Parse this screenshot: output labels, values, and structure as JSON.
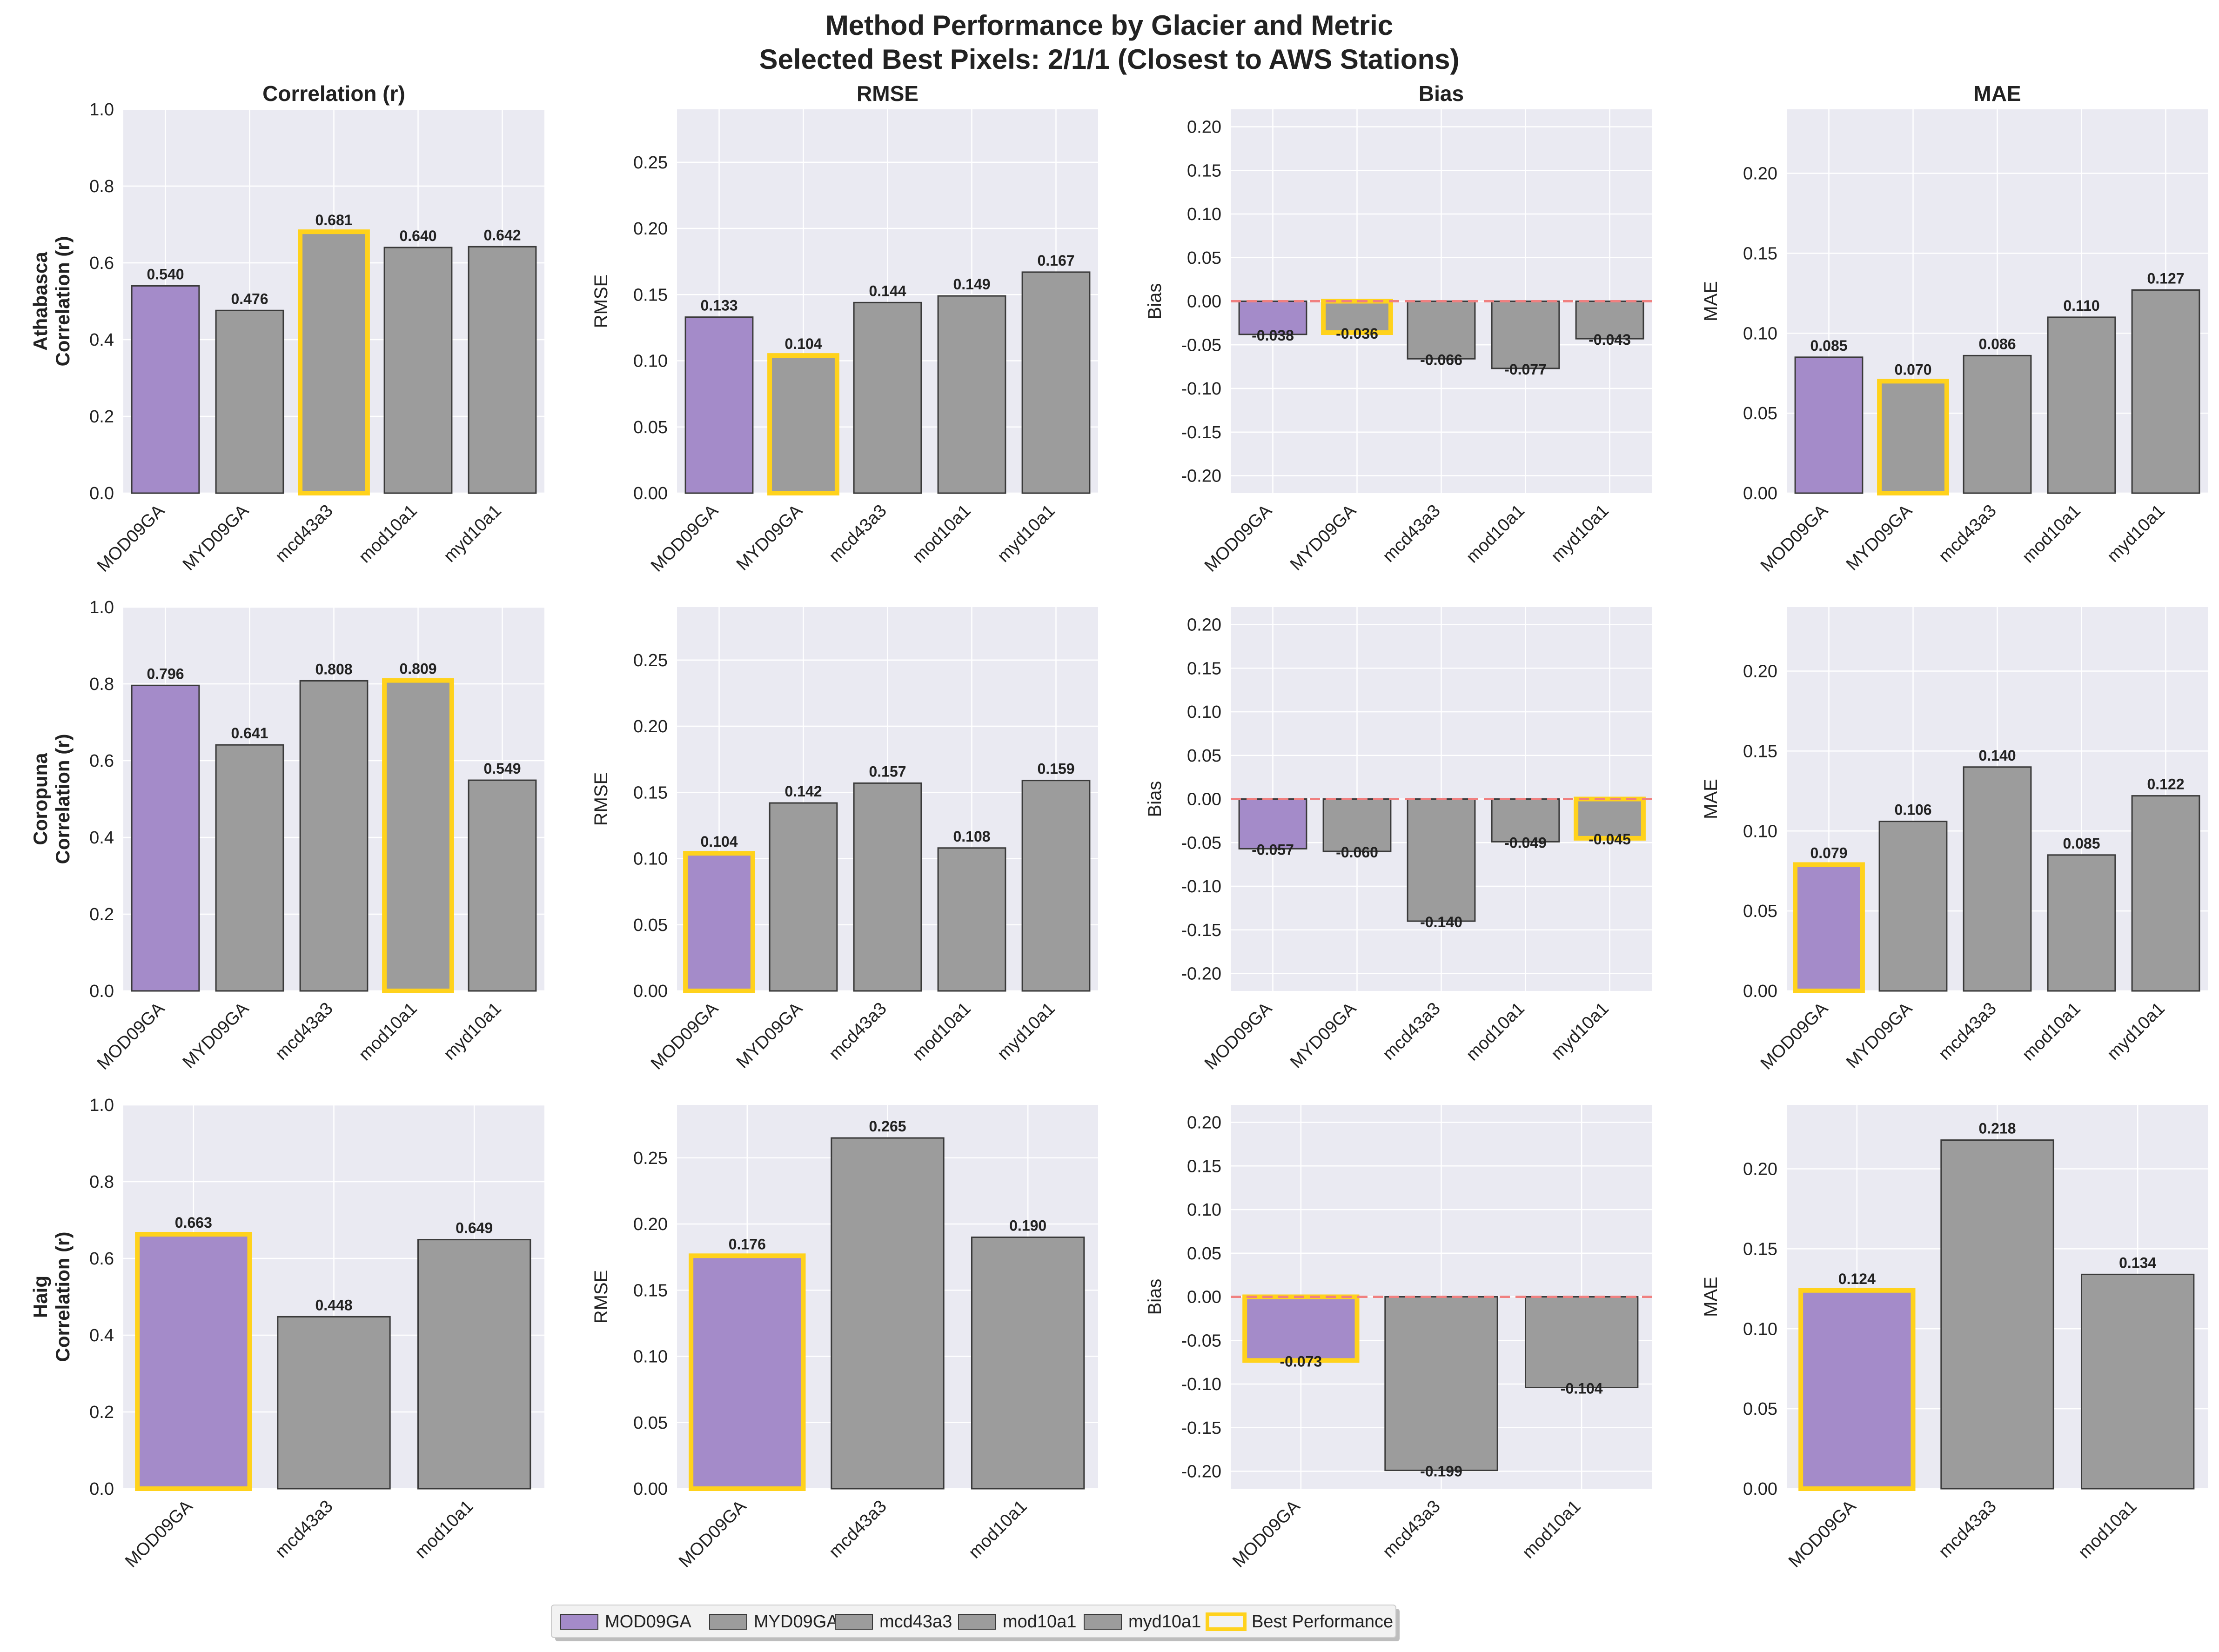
{
  "figure": {
    "title_line1": "Method Performance by Glacier and Metric",
    "title_line2": "Selected Best Pixels: 2/1/1 (Closest to AWS Stations)",
    "colors": {
      "background": "#eaeaf2",
      "grid": "#ffffff",
      "purple": "#a48bc9",
      "gray": "#9c9c9c",
      "edge": "#3a3a3a",
      "best": "#ffd21c",
      "zero_line": "#f08080"
    }
  },
  "legend": {
    "items": [
      {
        "label": "MOD09GA",
        "color": "#a48bc9",
        "kind": "fill"
      },
      {
        "label": "MYD09GA",
        "color": "#9c9c9c",
        "kind": "fill"
      },
      {
        "label": "mcd43a3",
        "color": "#9c9c9c",
        "kind": "fill"
      },
      {
        "label": "mod10a1",
        "color": "#9c9c9c",
        "kind": "fill"
      },
      {
        "label": "myd10a1",
        "color": "#9c9c9c",
        "kind": "fill"
      },
      {
        "label": "Best Performance",
        "color": "#ffd21c",
        "kind": "outline"
      }
    ]
  },
  "chart_data": [
    {
      "type": "bar",
      "row": 0,
      "col": 0,
      "title": "Correlation (r)",
      "ylabel": "Athabasca\nCorrelation (r)",
      "categories": [
        "MOD09GA",
        "MYD09GA",
        "mcd43a3",
        "mod10a1",
        "myd10a1"
      ],
      "values": [
        0.54,
        0.476,
        0.681,
        0.64,
        0.642
      ],
      "labels": [
        "0.540",
        "0.476",
        "0.681",
        "0.640",
        "0.642"
      ],
      "best": 2,
      "ylim": [
        0,
        1.0
      ],
      "ticks": [
        0.0,
        0.2,
        0.4,
        0.6,
        0.8,
        1.0
      ],
      "tick_labels": [
        "0.0",
        "0.2",
        "0.4",
        "0.6",
        "0.8",
        "1.0"
      ],
      "zero_line": false
    },
    {
      "type": "bar",
      "row": 0,
      "col": 1,
      "title": "RMSE",
      "ylabel": "RMSE",
      "categories": [
        "MOD09GA",
        "MYD09GA",
        "mcd43a3",
        "mod10a1",
        "myd10a1"
      ],
      "values": [
        0.133,
        0.104,
        0.144,
        0.149,
        0.167
      ],
      "labels": [
        "0.133",
        "0.104",
        "0.144",
        "0.149",
        "0.167"
      ],
      "best": 1,
      "ylim": [
        0,
        0.29
      ],
      "ticks": [
        0.0,
        0.05,
        0.1,
        0.15,
        0.2,
        0.25
      ],
      "tick_labels": [
        "0.00",
        "0.05",
        "0.10",
        "0.15",
        "0.20",
        "0.25"
      ],
      "zero_line": false
    },
    {
      "type": "bar",
      "row": 0,
      "col": 2,
      "title": "Bias",
      "ylabel": "Bias",
      "categories": [
        "MOD09GA",
        "MYD09GA",
        "mcd43a3",
        "mod10a1",
        "myd10a1"
      ],
      "values": [
        -0.038,
        -0.036,
        -0.066,
        -0.077,
        -0.043
      ],
      "labels": [
        "-0.038",
        "-0.036",
        "-0.066",
        "-0.077",
        "-0.043"
      ],
      "best": 1,
      "ylim": [
        -0.22,
        0.22
      ],
      "ticks": [
        -0.2,
        -0.15,
        -0.1,
        -0.05,
        0.0,
        0.05,
        0.1,
        0.15,
        0.2
      ],
      "tick_labels": [
        "-0.20",
        "-0.15",
        "-0.10",
        "-0.05",
        "0.00",
        "0.05",
        "0.10",
        "0.15",
        "0.20"
      ],
      "zero_line": true
    },
    {
      "type": "bar",
      "row": 0,
      "col": 3,
      "title": "MAE",
      "ylabel": "MAE",
      "categories": [
        "MOD09GA",
        "MYD09GA",
        "mcd43a3",
        "mod10a1",
        "myd10a1"
      ],
      "values": [
        0.085,
        0.07,
        0.086,
        0.11,
        0.127
      ],
      "labels": [
        "0.085",
        "0.070",
        "0.086",
        "0.110",
        "0.127"
      ],
      "best": 1,
      "ylim": [
        0,
        0.24
      ],
      "ticks": [
        0.0,
        0.05,
        0.1,
        0.15,
        0.2
      ],
      "tick_labels": [
        "0.00",
        "0.05",
        "0.10",
        "0.15",
        "0.20"
      ],
      "zero_line": false
    },
    {
      "type": "bar",
      "row": 1,
      "col": 0,
      "title": "",
      "ylabel": "Coropuna\nCorrelation (r)",
      "categories": [
        "MOD09GA",
        "MYD09GA",
        "mcd43a3",
        "mod10a1",
        "myd10a1"
      ],
      "values": [
        0.796,
        0.641,
        0.808,
        0.809,
        0.549
      ],
      "labels": [
        "0.796",
        "0.641",
        "0.808",
        "0.809",
        "0.549"
      ],
      "best": 3,
      "ylim": [
        0,
        1.0
      ],
      "ticks": [
        0.0,
        0.2,
        0.4,
        0.6,
        0.8,
        1.0
      ],
      "tick_labels": [
        "0.0",
        "0.2",
        "0.4",
        "0.6",
        "0.8",
        "1.0"
      ],
      "zero_line": false
    },
    {
      "type": "bar",
      "row": 1,
      "col": 1,
      "title": "",
      "ylabel": "RMSE",
      "categories": [
        "MOD09GA",
        "MYD09GA",
        "mcd43a3",
        "mod10a1",
        "myd10a1"
      ],
      "values": [
        0.104,
        0.142,
        0.157,
        0.108,
        0.159
      ],
      "labels": [
        "0.104",
        "0.142",
        "0.157",
        "0.108",
        "0.159"
      ],
      "best": 0,
      "ylim": [
        0,
        0.29
      ],
      "ticks": [
        0.0,
        0.05,
        0.1,
        0.15,
        0.2,
        0.25
      ],
      "tick_labels": [
        "0.00",
        "0.05",
        "0.10",
        "0.15",
        "0.20",
        "0.25"
      ],
      "zero_line": false
    },
    {
      "type": "bar",
      "row": 1,
      "col": 2,
      "title": "",
      "ylabel": "Bias",
      "categories": [
        "MOD09GA",
        "MYD09GA",
        "mcd43a3",
        "mod10a1",
        "myd10a1"
      ],
      "values": [
        -0.057,
        -0.06,
        -0.14,
        -0.049,
        -0.045
      ],
      "labels": [
        "-0.057",
        "-0.060",
        "-0.140",
        "-0.049",
        "-0.045"
      ],
      "best": 4,
      "ylim": [
        -0.22,
        0.22
      ],
      "ticks": [
        -0.2,
        -0.15,
        -0.1,
        -0.05,
        0.0,
        0.05,
        0.1,
        0.15,
        0.2
      ],
      "tick_labels": [
        "-0.20",
        "-0.15",
        "-0.10",
        "-0.05",
        "0.00",
        "0.05",
        "0.10",
        "0.15",
        "0.20"
      ],
      "zero_line": true
    },
    {
      "type": "bar",
      "row": 1,
      "col": 3,
      "title": "",
      "ylabel": "MAE",
      "categories": [
        "MOD09GA",
        "MYD09GA",
        "mcd43a3",
        "mod10a1",
        "myd10a1"
      ],
      "values": [
        0.079,
        0.106,
        0.14,
        0.085,
        0.122
      ],
      "labels": [
        "0.079",
        "0.106",
        "0.140",
        "0.085",
        "0.122"
      ],
      "best": 0,
      "ylim": [
        0,
        0.24
      ],
      "ticks": [
        0.0,
        0.05,
        0.1,
        0.15,
        0.2
      ],
      "tick_labels": [
        "0.00",
        "0.05",
        "0.10",
        "0.15",
        "0.20"
      ],
      "zero_line": false
    },
    {
      "type": "bar",
      "row": 2,
      "col": 0,
      "title": "",
      "ylabel": "Haig\nCorrelation (r)",
      "categories": [
        "MOD09GA",
        "mcd43a3",
        "mod10a1"
      ],
      "values": [
        0.663,
        0.448,
        0.649
      ],
      "labels": [
        "0.663",
        "0.448",
        "0.649"
      ],
      "best": 0,
      "ylim": [
        0,
        1.0
      ],
      "ticks": [
        0.0,
        0.2,
        0.4,
        0.6,
        0.8,
        1.0
      ],
      "tick_labels": [
        "0.0",
        "0.2",
        "0.4",
        "0.6",
        "0.8",
        "1.0"
      ],
      "zero_line": false
    },
    {
      "type": "bar",
      "row": 2,
      "col": 1,
      "title": "",
      "ylabel": "RMSE",
      "categories": [
        "MOD09GA",
        "mcd43a3",
        "mod10a1"
      ],
      "values": [
        0.176,
        0.265,
        0.19
      ],
      "labels": [
        "0.176",
        "0.265",
        "0.190"
      ],
      "best": 0,
      "ylim": [
        0,
        0.29
      ],
      "ticks": [
        0.0,
        0.05,
        0.1,
        0.15,
        0.2,
        0.25
      ],
      "tick_labels": [
        "0.00",
        "0.05",
        "0.10",
        "0.15",
        "0.20",
        "0.25"
      ],
      "zero_line": false
    },
    {
      "type": "bar",
      "row": 2,
      "col": 2,
      "title": "",
      "ylabel": "Bias",
      "categories": [
        "MOD09GA",
        "mcd43a3",
        "mod10a1"
      ],
      "values": [
        -0.073,
        -0.199,
        -0.104
      ],
      "labels": [
        "-0.073",
        "-0.199",
        "-0.104"
      ],
      "best": 0,
      "ylim": [
        -0.22,
        0.22
      ],
      "ticks": [
        -0.2,
        -0.15,
        -0.1,
        -0.05,
        0.0,
        0.05,
        0.1,
        0.15,
        0.2
      ],
      "tick_labels": [
        "-0.20",
        "-0.15",
        "-0.10",
        "-0.05",
        "0.00",
        "0.05",
        "0.10",
        "0.15",
        "0.20"
      ],
      "zero_line": true
    },
    {
      "type": "bar",
      "row": 2,
      "col": 3,
      "title": "",
      "ylabel": "MAE",
      "categories": [
        "MOD09GA",
        "mcd43a3",
        "mod10a1"
      ],
      "values": [
        0.124,
        0.218,
        0.134
      ],
      "labels": [
        "0.124",
        "0.218",
        "0.134"
      ],
      "best": 0,
      "ylim": [
        0,
        0.24
      ],
      "ticks": [
        0.0,
        0.05,
        0.1,
        0.15,
        0.2
      ],
      "tick_labels": [
        "0.00",
        "0.05",
        "0.10",
        "0.15",
        "0.20"
      ],
      "zero_line": false
    }
  ]
}
